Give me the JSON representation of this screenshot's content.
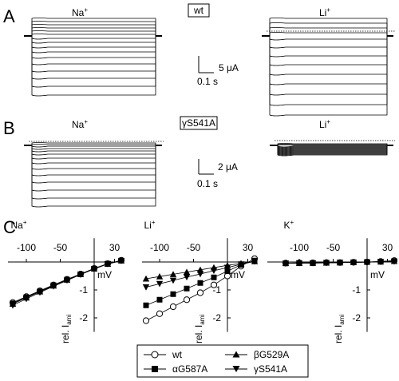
{
  "panels": {
    "A": {
      "letter": "A",
      "construct": "wt",
      "ion_left": "Na",
      "ion_right": "Li",
      "superscript": "+",
      "scale_current": "5 μA",
      "scale_time": "0.1 s"
    },
    "B": {
      "letter": "B",
      "construct": "γS541A",
      "ion_left": "Na",
      "ion_right": "Li",
      "superscript": "+",
      "scale_current": "2 μA",
      "scale_time": "0.1 s"
    },
    "C": {
      "letter": "C"
    }
  },
  "iv_axes": {
    "x_ticks": [
      "-100",
      "-50",
      "30"
    ],
    "y_ticks": [
      "-1",
      "-2"
    ],
    "xlabel": "mV",
    "ylabel_main": "rel. I",
    "ylabel_sub": "ami"
  },
  "legend": {
    "items": [
      {
        "label": "wt",
        "marker": "circle-open"
      },
      {
        "label": "βG529A",
        "marker": "triangle-up"
      },
      {
        "label": "αG587A",
        "marker": "square"
      },
      {
        "label": "γS541A",
        "marker": "triangle-down"
      }
    ]
  },
  "chart_data": [
    {
      "type": "line",
      "title": "Na",
      "xlabel": "mV",
      "ylabel": "rel. I ami",
      "xlim": [
        -130,
        40
      ],
      "ylim": [
        -2.5,
        0.3
      ],
      "x": [
        -120,
        -100,
        -80,
        -60,
        -40,
        -20,
        0,
        20,
        40
      ],
      "series": [
        {
          "name": "wt",
          "marker": "circle-open",
          "values": [
            -1.45,
            -1.24,
            -1.03,
            -0.82,
            -0.62,
            -0.43,
            -0.23,
            -0.06,
            0.06
          ]
        },
        {
          "name": "βG529A",
          "marker": "triangle-up",
          "values": [
            -1.5,
            -1.28,
            -1.06,
            -0.85,
            -0.64,
            -0.44,
            -0.24,
            -0.07,
            0.05
          ]
        },
        {
          "name": "αG587A",
          "marker": "square",
          "values": [
            -1.48,
            -1.26,
            -1.05,
            -0.83,
            -0.63,
            -0.44,
            -0.24,
            -0.06,
            0.05
          ]
        },
        {
          "name": "γS541A",
          "marker": "triangle-down",
          "values": [
            -1.55,
            -1.32,
            -1.09,
            -0.87,
            -0.66,
            -0.45,
            -0.25,
            -0.07,
            0.04
          ]
        }
      ]
    },
    {
      "type": "line",
      "title": "Li",
      "xlabel": "mV",
      "ylabel": "rel. I ami",
      "xlim": [
        -130,
        40
      ],
      "ylim": [
        -2.5,
        0.3
      ],
      "x": [
        -120,
        -100,
        -80,
        -60,
        -40,
        -20,
        0,
        20,
        40
      ],
      "series": [
        {
          "name": "wt",
          "marker": "circle-open",
          "values": [
            -2.1,
            -1.85,
            -1.6,
            -1.35,
            -1.1,
            -0.82,
            -0.5,
            -0.15,
            0.12
          ]
        },
        {
          "name": "βG529A",
          "marker": "triangle-up",
          "values": [
            -0.6,
            -0.52,
            -0.44,
            -0.36,
            -0.28,
            -0.2,
            -0.12,
            -0.05,
            0.02
          ]
        },
        {
          "name": "αG587A",
          "marker": "square",
          "values": [
            -1.55,
            -1.35,
            -1.15,
            -0.95,
            -0.75,
            -0.55,
            -0.33,
            -0.1,
            0.05
          ]
        },
        {
          "name": "γS541A",
          "marker": "triangle-down",
          "values": [
            -0.9,
            -0.78,
            -0.66,
            -0.54,
            -0.43,
            -0.31,
            -0.2,
            -0.08,
            0.02
          ]
        }
      ]
    },
    {
      "type": "line",
      "title": "K",
      "xlabel": "mV",
      "ylabel": "rel. I ami",
      "xlim": [
        -130,
        40
      ],
      "ylim": [
        -2.5,
        0.3
      ],
      "x": [
        -120,
        -100,
        -80,
        -60,
        -40,
        -20,
        0,
        20,
        40
      ],
      "series": [
        {
          "name": "wt",
          "marker": "circle-open",
          "values": [
            -0.04,
            -0.03,
            -0.03,
            -0.02,
            -0.02,
            -0.01,
            0.0,
            0.02,
            0.05
          ]
        },
        {
          "name": "βG529A",
          "marker": "triangle-up",
          "values": [
            -0.04,
            -0.04,
            -0.03,
            -0.03,
            -0.02,
            -0.01,
            0.0,
            0.01,
            0.03
          ]
        },
        {
          "name": "αG587A",
          "marker": "square",
          "values": [
            -0.05,
            -0.04,
            -0.04,
            -0.03,
            -0.02,
            -0.01,
            0.0,
            0.01,
            0.03
          ]
        },
        {
          "name": "γS541A",
          "marker": "triangle-down",
          "values": [
            -0.05,
            -0.04,
            -0.04,
            -0.03,
            -0.02,
            -0.02,
            -0.01,
            0.01,
            0.02
          ]
        }
      ]
    }
  ]
}
